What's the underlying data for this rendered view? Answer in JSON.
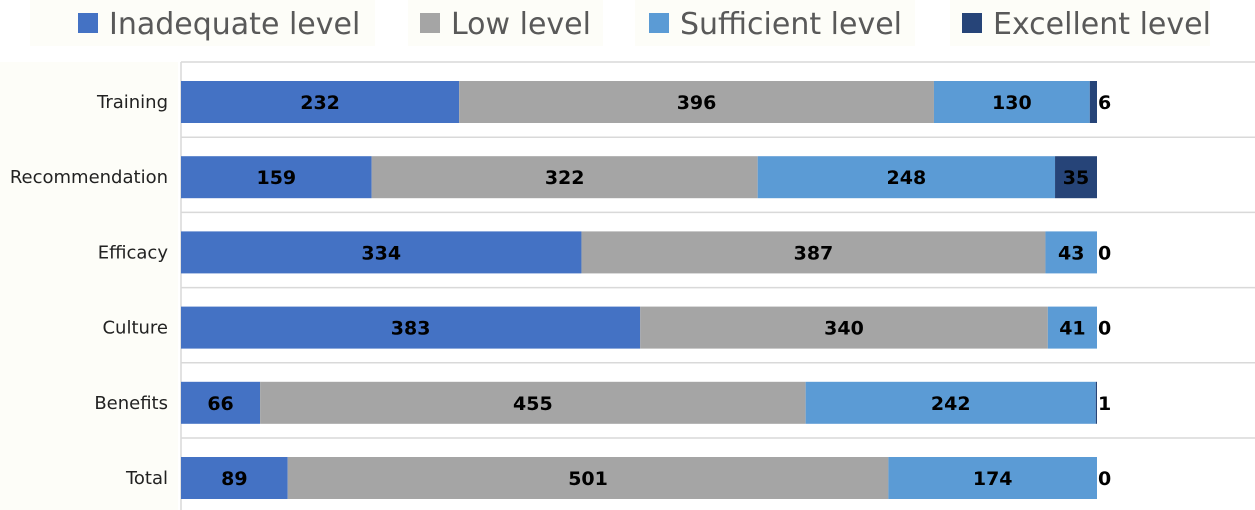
{
  "chart_data": {
    "type": "bar",
    "orientation": "horizontal",
    "stacked": true,
    "categories": [
      "Training",
      "Recommendation",
      "Efficacy",
      "Culture",
      "Benefits",
      "Total"
    ],
    "series": [
      {
        "name": "Inadequate level",
        "color": "#4472C4",
        "values": [
          232,
          159,
          334,
          383,
          66,
          89
        ]
      },
      {
        "name": "Low level",
        "color": "#A5A5A5",
        "values": [
          396,
          322,
          387,
          340,
          455,
          501
        ]
      },
      {
        "name": "Sufficient level",
        "color": "#5B9BD5",
        "values": [
          130,
          248,
          43,
          41,
          242,
          174
        ]
      },
      {
        "name": "Excellent level",
        "color": "#264478",
        "values": [
          6,
          35,
          0,
          0,
          1,
          0
        ]
      }
    ],
    "grid": true,
    "legend": "top"
  }
}
